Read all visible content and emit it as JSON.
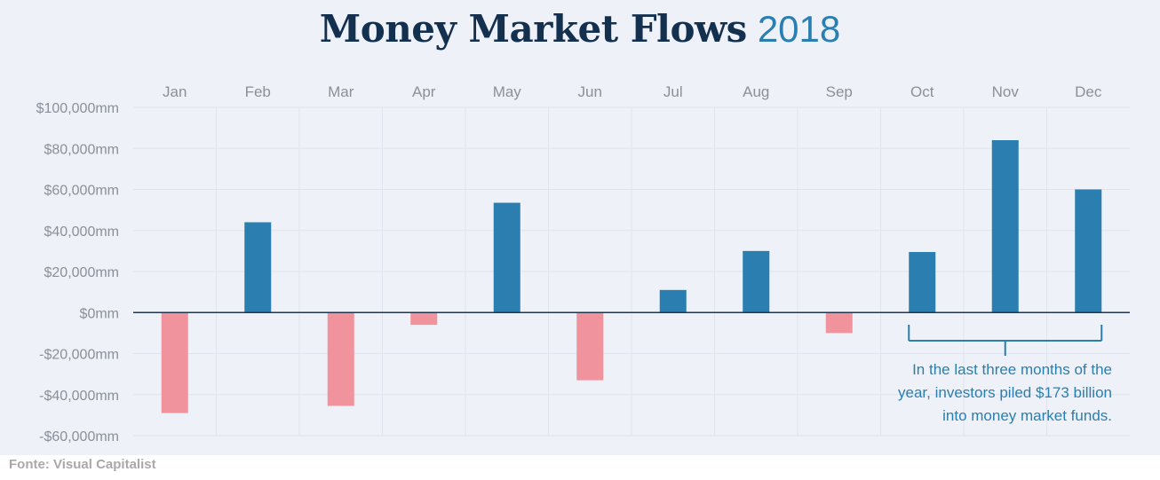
{
  "title": {
    "main": "Money Market Flows",
    "year": "2018"
  },
  "source": "Fonte: Visual Capitalist",
  "colors": {
    "positive": "#2a7fb0",
    "negative": "#f0939c",
    "annotation": "#2a7fb0",
    "title": "#14304f"
  },
  "annotation": {
    "lines": [
      "In the last three months of the",
      "year, investors piled $173 billion",
      "into money market funds."
    ]
  },
  "chart_data": {
    "type": "bar",
    "categories": [
      "Jan",
      "Feb",
      "Mar",
      "Apr",
      "May",
      "Jun",
      "Jul",
      "Aug",
      "Sep",
      "Oct",
      "Nov",
      "Dec"
    ],
    "values": [
      -49000,
      44000,
      -45500,
      -6000,
      53500,
      -33000,
      11000,
      30000,
      -10000,
      29500,
      84000,
      60000
    ],
    "yticks": [
      "$100,000mm",
      "$80,000mm",
      "$60,000mm",
      "$40,000mm",
      "$20,000mm",
      "$0mm",
      "-$20,000mm",
      "-$40,000mm",
      "-$60,000mm"
    ],
    "ylim": [
      -60000,
      100000
    ],
    "ylabel": "",
    "xlabel": "",
    "grid": true,
    "x_axis_position": "top"
  }
}
